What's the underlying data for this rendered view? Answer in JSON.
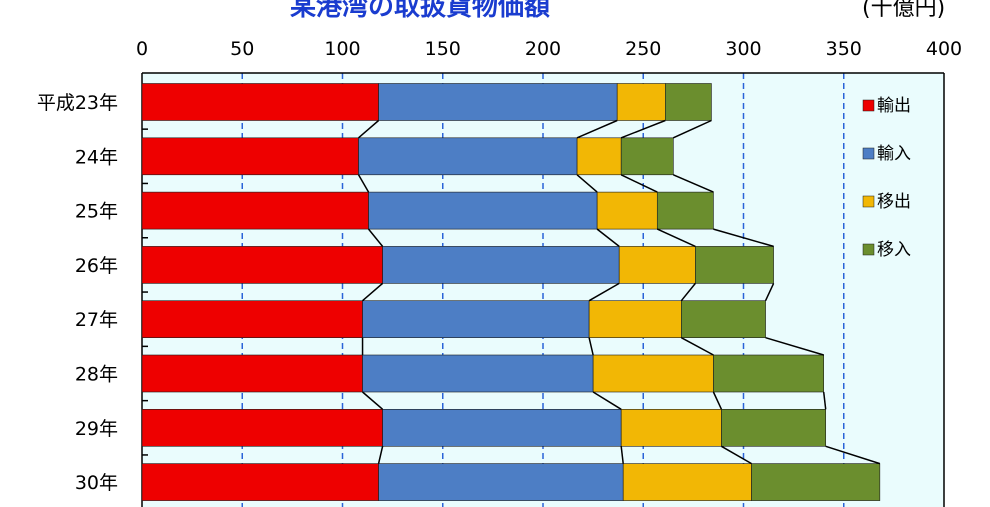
{
  "chart_data": {
    "type": "bar",
    "orientation": "horizontal",
    "stacked": true,
    "title": "某港湾の取扱貨物価額",
    "unit": "(十億円)",
    "categories": [
      "平成23年",
      "24年",
      "25年",
      "26年",
      "27年",
      "28年",
      "29年",
      "30年"
    ],
    "xlim": [
      0,
      400
    ],
    "x_ticks": [
      "0",
      "50",
      "100",
      "150",
      "200",
      "250",
      "300",
      "350",
      "400"
    ],
    "grid": "vertical dashed",
    "legend_position": "right",
    "series_connectors": true,
    "series": [
      {
        "name": "輸出",
        "color": "#ee0000",
        "values": [
          118,
          108,
          113,
          120,
          110,
          110,
          120,
          118
        ]
      },
      {
        "name": "輸入",
        "color": "#4d7ec5",
        "values": [
          119,
          109,
          114,
          118,
          113,
          115,
          119,
          122
        ]
      },
      {
        "name": "移出",
        "color": "#f2b705",
        "values": [
          24,
          22,
          30,
          38,
          46,
          60,
          50,
          64
        ]
      },
      {
        "name": "移入",
        "color": "#6b8e2e",
        "values": [
          23,
          26,
          28,
          39,
          42,
          55,
          52,
          64
        ]
      }
    ]
  }
}
